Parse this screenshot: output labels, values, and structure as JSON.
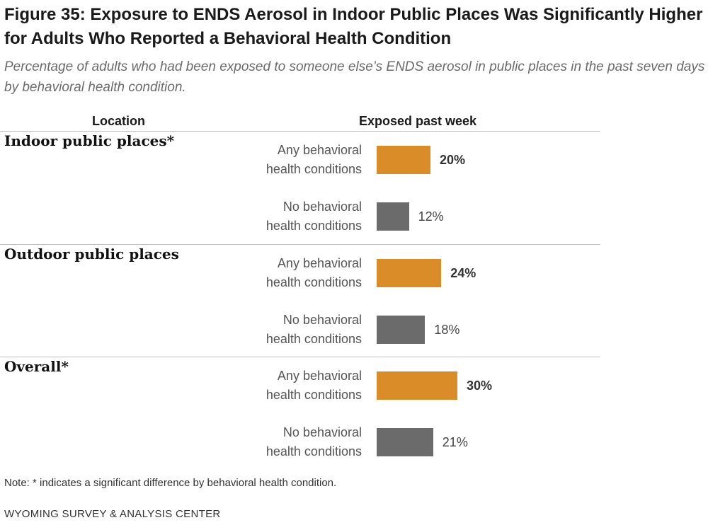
{
  "title": "Figure 35: Exposure to ENDS Aerosol in Indoor Public Places Was Significantly Higher for Adults Who Reported a Behavioral Health Condition",
  "subtitle": "Percentage of adults who had been exposed to someone else’s ENDS aerosol in public places in the past seven days by behavioral health condition.",
  "columns": {
    "location": "Location",
    "exposed": "Exposed past week"
  },
  "note": "Note: * indicates a significant difference by behavioral health condition.",
  "source": "WYOMING SURVEY & ANALYSIS CENTER",
  "colors": {
    "any": "#D98C28",
    "none": "#6B6B6B"
  },
  "chart_data": {
    "type": "bar",
    "orientation": "horizontal",
    "groups": [
      {
        "label": "Indoor public places*",
        "rows": [
          {
            "label_lines": [
              "Any behavioral",
              "health conditions"
            ],
            "value": 20,
            "value_label": "20%",
            "color_key": "any",
            "bold": true
          },
          {
            "label_lines": [
              "No behavioral",
              "health conditions"
            ],
            "value": 12,
            "value_label": "12%",
            "color_key": "none",
            "bold": false
          }
        ]
      },
      {
        "label": "Outdoor public places",
        "rows": [
          {
            "label_lines": [
              "Any behavioral",
              "health conditions"
            ],
            "value": 24,
            "value_label": "24%",
            "color_key": "any",
            "bold": true
          },
          {
            "label_lines": [
              "No behavioral",
              "health conditions"
            ],
            "value": 18,
            "value_label": "18%",
            "color_key": "none",
            "bold": false
          }
        ]
      },
      {
        "label": "Overall*",
        "rows": [
          {
            "label_lines": [
              "Any behavioral",
              "health conditions"
            ],
            "value": 30,
            "value_label": "30%",
            "color_key": "any",
            "bold": true
          },
          {
            "label_lines": [
              "No behavioral",
              "health conditions"
            ],
            "value": 21,
            "value_label": "21%",
            "color_key": "none",
            "bold": false
          }
        ]
      }
    ]
  }
}
